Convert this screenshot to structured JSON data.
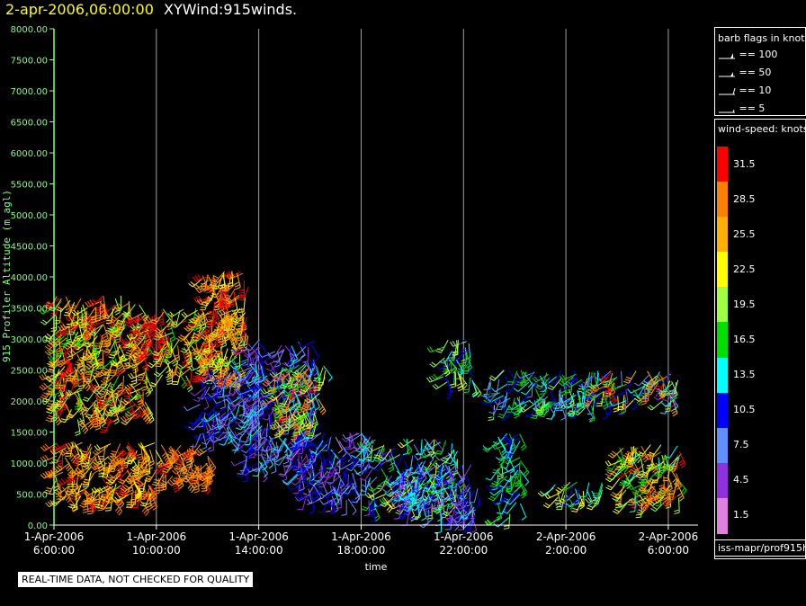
{
  "header": {
    "datetime": "2-apr-2006,06:00:00",
    "title": "XYWind:915winds."
  },
  "chart_data": {
    "type": "scatter",
    "glyph": "wind barbs",
    "xlabel": "time",
    "ylabel": "915 Profiler Altitude (m agl)",
    "ylim": [
      0,
      8000
    ],
    "y_ticks": [
      "0.00",
      "500.00",
      "1000.00",
      "1500.00",
      "2000.00",
      "2500.00",
      "3000.00",
      "3500.00",
      "4000.00",
      "4500.00",
      "5000.00",
      "5500.00",
      "6000.00",
      "6500.00",
      "7000.00",
      "7500.00",
      "8000.00"
    ],
    "x_ticks": [
      {
        "date": "1-Apr-2006",
        "time": "6:00:00"
      },
      {
        "date": "1-Apr-2006",
        "time": "10:00:00"
      },
      {
        "date": "1-Apr-2006",
        "time": "14:00:00"
      },
      {
        "date": "1-Apr-2006",
        "time": "18:00:00"
      },
      {
        "date": "1-Apr-2006",
        "time": "22:00:00"
      },
      {
        "date": "2-Apr-2006",
        "time": "2:00:00"
      },
      {
        "date": "2-Apr-2006",
        "time": "6:00:00"
      }
    ],
    "xlim_hours": [
      0,
      24.6
    ],
    "grid": "vertical lines at x ticks",
    "clusters": [
      {
        "t0": 0.0,
        "t1": 4.0,
        "h0": 400,
        "h1": 1350,
        "s0": 22,
        "s1": 31
      },
      {
        "t0": 0.0,
        "t1": 3.8,
        "h0": 1700,
        "h1": 3700,
        "s0": 16,
        "s1": 33
      },
      {
        "t0": 3.2,
        "t1": 4.2,
        "h0": 2800,
        "h1": 3400,
        "s0": 28,
        "s1": 33
      },
      {
        "t0": 4.0,
        "t1": 6.3,
        "h0": 700,
        "h1": 1300,
        "s0": 25,
        "s1": 31
      },
      {
        "t0": 4.2,
        "t1": 7.5,
        "h0": 2400,
        "h1": 3500,
        "s0": 17,
        "s1": 31
      },
      {
        "t0": 5.8,
        "t1": 7.6,
        "h0": 3000,
        "h1": 4100,
        "s0": 23,
        "s1": 32
      },
      {
        "t0": 5.7,
        "t1": 8.0,
        "h0": 1400,
        "h1": 2600,
        "s0": 3,
        "s1": 13
      },
      {
        "t0": 7.5,
        "t1": 10.2,
        "h0": 900,
        "h1": 3000,
        "s0": 3,
        "s1": 14
      },
      {
        "t0": 8.6,
        "t1": 10.6,
        "h0": 1600,
        "h1": 2600,
        "s0": 13,
        "s1": 31
      },
      {
        "t0": 9.5,
        "t1": 12.4,
        "h0": 400,
        "h1": 1500,
        "s0": 2,
        "s1": 14
      },
      {
        "t0": 12.4,
        "t1": 15.8,
        "h0": 300,
        "h1": 1400,
        "s0": 4,
        "s1": 23
      },
      {
        "t0": 13.5,
        "t1": 16.6,
        "h0": 100,
        "h1": 1000,
        "s0": 3,
        "s1": 15
      },
      {
        "t0": 15.2,
        "t1": 16.4,
        "h0": 2300,
        "h1": 3100,
        "s0": 10,
        "s1": 22
      },
      {
        "t0": 17.3,
        "t1": 18.3,
        "h0": 100,
        "h1": 1500,
        "s0": 10,
        "s1": 19
      },
      {
        "t0": 17.0,
        "t1": 21.8,
        "h0": 1900,
        "h1": 2500,
        "s0": 6,
        "s1": 20
      },
      {
        "t0": 21.0,
        "t1": 24.4,
        "h0": 2000,
        "h1": 2500,
        "s0": 4,
        "s1": 32
      },
      {
        "t0": 22.0,
        "t1": 24.5,
        "h0": 350,
        "h1": 1300,
        "s0": 14,
        "s1": 32
      },
      {
        "t0": 19.5,
        "t1": 21.5,
        "h0": 400,
        "h1": 700,
        "s0": 10,
        "s1": 24
      }
    ]
  },
  "legend": {
    "barb_title": "barb flags in knots",
    "barb_items": [
      {
        "kind": "pennant",
        "label": "== 100"
      },
      {
        "kind": "pennant",
        "label": "== 50"
      },
      {
        "kind": "full",
        "label": "== 10"
      },
      {
        "kind": "half",
        "label": "== 5"
      }
    ],
    "speed_title": "wind-speed: knots",
    "speed_scale": [
      {
        "label": "31.5",
        "color": "#ff0000"
      },
      {
        "label": "28.5",
        "color": "#ff8000"
      },
      {
        "label": "25.5",
        "color": "#ffb000"
      },
      {
        "label": "22.5",
        "color": "#ffff00"
      },
      {
        "label": "19.5",
        "color": "#a0ff40"
      },
      {
        "label": "16.5",
        "color": "#00e000"
      },
      {
        "label": "13.5",
        "color": "#00ffff"
      },
      {
        "label": "10.5",
        "color": "#0000ff"
      },
      {
        "label": "7.5",
        "color": "#6090ff"
      },
      {
        "label": "4.5",
        "color": "#9030e0"
      },
      {
        "label": "1.5",
        "color": "#e080e0"
      }
    ]
  },
  "source": "iss-mapr/prof915h",
  "disclaimer": "REAL-TIME DATA, NOT CHECKED FOR QUALITY"
}
